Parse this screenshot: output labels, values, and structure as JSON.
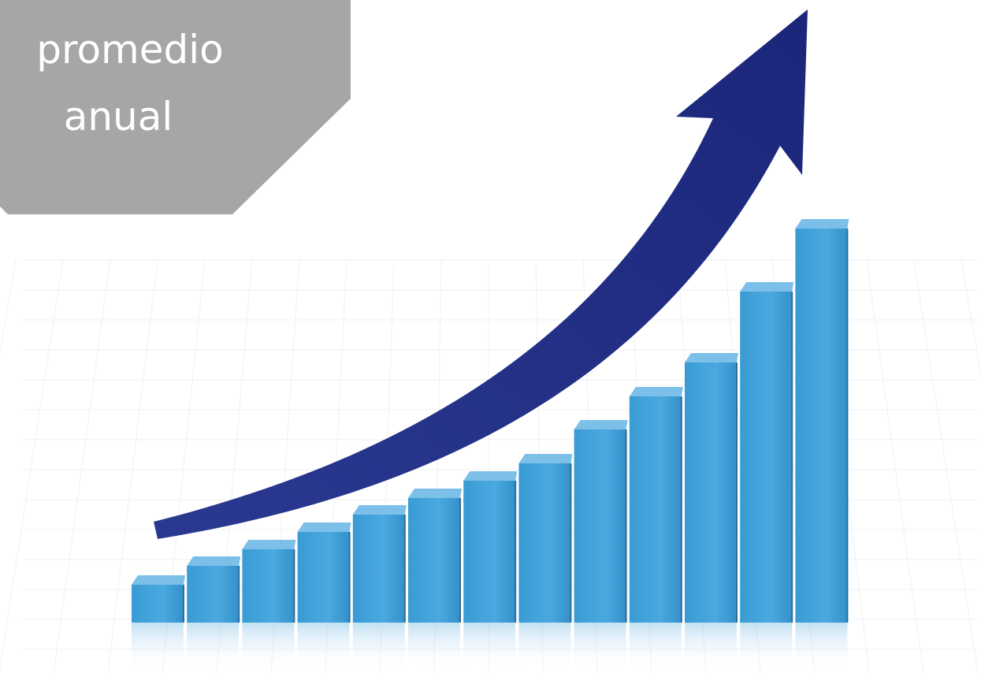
{
  "label": {
    "lines": [
      "promedio",
      "anual"
    ]
  }
}
